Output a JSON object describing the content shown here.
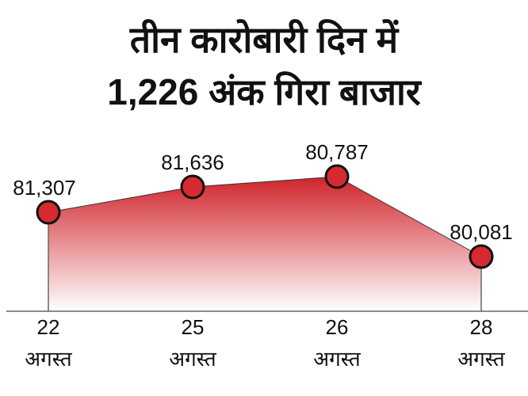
{
  "chart_data": {
    "type": "area",
    "title": [
      "तीन कारोबारी दिन में",
      "1,226 अंक गिरा बाजार"
    ],
    "categories": [
      {
        "day": "22",
        "month": "अगस्त"
      },
      {
        "day": "25",
        "month": "अगस्त"
      },
      {
        "day": "26",
        "month": "अगस्त"
      },
      {
        "day": "28",
        "month": "अगस्त"
      }
    ],
    "values": [
      81307,
      81636,
      80787,
      80081
    ],
    "value_labels": [
      "81,307",
      "81,636",
      "80,787",
      "80,081"
    ],
    "colors": {
      "marker": "#d42a30",
      "fill_top": "#d0242b",
      "fill_bottom": "#ffffff",
      "axis": "#666666"
    }
  }
}
